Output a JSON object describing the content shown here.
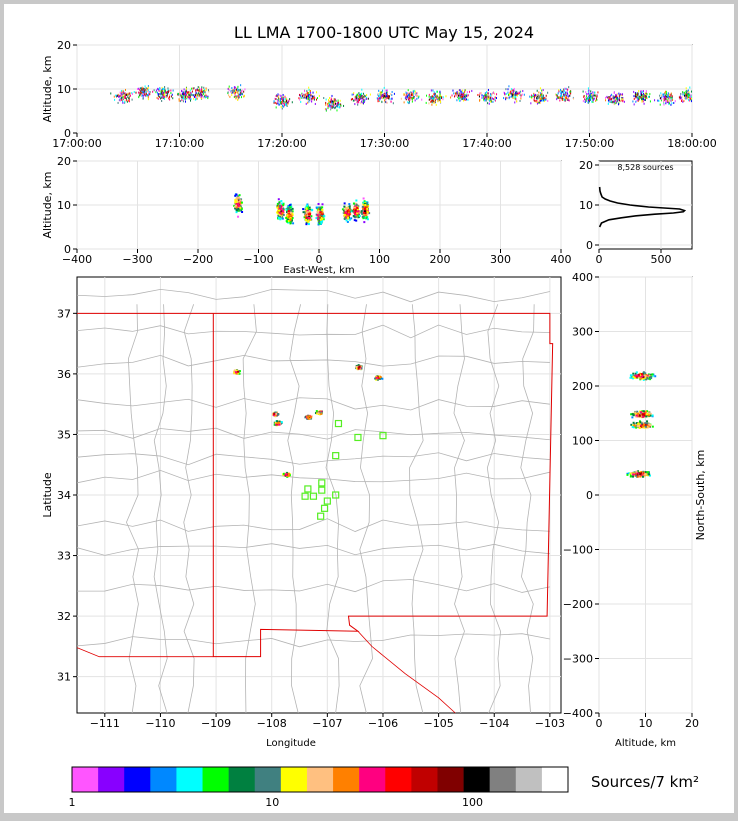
{
  "title": "LL LMA 1700-1800 UTC May 15, 2024",
  "chart_data": [
    {
      "id": "time-height",
      "type": "scatter",
      "ylabel": "Altitude, km",
      "xlim": [
        "17:00:00",
        "18:00:00"
      ],
      "ylim": [
        0,
        20
      ],
      "x_ticks": [
        "17:00:00",
        "17:10:00",
        "17:20:00",
        "17:30:00",
        "17:40:00",
        "17:50:00",
        "18:00:00"
      ],
      "y_ticks": [
        0,
        10,
        20
      ],
      "points": [
        {
          "t": "17:04:30",
          "alt": 8.5
        },
        {
          "t": "17:06:30",
          "alt": 9.5
        },
        {
          "t": "17:08:30",
          "alt": 9.0
        },
        {
          "t": "17:10:30",
          "alt": 8.8
        },
        {
          "t": "17:12:00",
          "alt": 9.2
        },
        {
          "t": "17:15:30",
          "alt": 9.5
        },
        {
          "t": "17:20:00",
          "alt": 7.5
        },
        {
          "t": "17:22:30",
          "alt": 8.5
        },
        {
          "t": "17:25:00",
          "alt": 7.0
        },
        {
          "t": "17:27:30",
          "alt": 8.0
        },
        {
          "t": "17:30:00",
          "alt": 8.5
        },
        {
          "t": "17:32:30",
          "alt": 8.5
        },
        {
          "t": "17:35:00",
          "alt": 8.2
        },
        {
          "t": "17:37:30",
          "alt": 8.8
        },
        {
          "t": "17:40:00",
          "alt": 8.5
        },
        {
          "t": "17:42:30",
          "alt": 9.0
        },
        {
          "t": "17:45:00",
          "alt": 8.5
        },
        {
          "t": "17:47:30",
          "alt": 8.8
        },
        {
          "t": "17:50:00",
          "alt": 8.5
        },
        {
          "t": "17:52:30",
          "alt": 8.0
        },
        {
          "t": "17:55:00",
          "alt": 8.5
        },
        {
          "t": "17:57:30",
          "alt": 8.2
        },
        {
          "t": "17:59:30",
          "alt": 8.5
        }
      ]
    },
    {
      "id": "ew-height",
      "type": "scatter",
      "xlabel": "East-West, km",
      "ylabel": "Altitude, km",
      "xlim": [
        -400,
        400
      ],
      "ylim": [
        0,
        20
      ],
      "x_ticks": [
        -400,
        -300,
        -200,
        -100,
        0,
        100,
        200,
        300,
        400
      ],
      "y_ticks": [
        0,
        10,
        20
      ],
      "points": [
        {
          "x": -135,
          "alt": 10.5
        },
        {
          "x": -65,
          "alt": 9.0
        },
        {
          "x": -50,
          "alt": 8.0
        },
        {
          "x": -20,
          "alt": 8.0
        },
        {
          "x": 0,
          "alt": 8.0
        },
        {
          "x": 45,
          "alt": 8.5
        },
        {
          "x": 60,
          "alt": 9.0
        },
        {
          "x": 75,
          "alt": 9.0
        }
      ]
    },
    {
      "id": "height-histogram",
      "type": "line",
      "annotation": "8,528 sources",
      "xlim": [
        0,
        750
      ],
      "ylim": [
        -1,
        21
      ],
      "x_ticks": [
        0,
        500
      ],
      "y_ticks": [
        0,
        10,
        20
      ],
      "x": [
        5,
        20,
        80,
        180,
        300,
        450,
        600,
        680,
        690,
        650,
        400,
        250,
        150,
        90,
        50,
        25,
        15,
        8,
        5
      ],
      "y": [
        4.5,
        5.5,
        6.3,
        6.8,
        7.3,
        7.7,
        8.0,
        8.3,
        8.6,
        9.0,
        9.5,
        10.0,
        10.5,
        11.0,
        11.5,
        12.0,
        12.8,
        13.5,
        14.5
      ]
    },
    {
      "id": "plan-view",
      "type": "scatter",
      "xlabel": "Longitude",
      "ylabel": "Latitude",
      "xlim": [
        -111.5,
        -102.8
      ],
      "ylim": [
        30.4,
        37.6
      ],
      "x_ticks": [
        -111,
        -110,
        -109,
        -108,
        -107,
        -106,
        -105,
        -104,
        -103
      ],
      "y_ticks": [
        31,
        32,
        33,
        34,
        35,
        36,
        37
      ],
      "clusters": [
        {
          "lon": -108.65,
          "lat": 36.05
        },
        {
          "lon": -106.45,
          "lat": 36.12
        },
        {
          "lon": -106.1,
          "lat": 35.95
        },
        {
          "lon": -107.95,
          "lat": 35.35
        },
        {
          "lon": -107.9,
          "lat": 35.2
        },
        {
          "lon": -107.35,
          "lat": 35.3
        },
        {
          "lon": -107.15,
          "lat": 35.38
        },
        {
          "lon": -107.75,
          "lat": 34.35
        }
      ],
      "stations": [
        {
          "lon": -106.8,
          "lat": 35.18
        },
        {
          "lon": -106.45,
          "lat": 34.95
        },
        {
          "lon": -106.0,
          "lat": 34.98
        },
        {
          "lon": -106.85,
          "lat": 34.65
        },
        {
          "lon": -107.1,
          "lat": 34.2
        },
        {
          "lon": -107.35,
          "lat": 34.1
        },
        {
          "lon": -107.1,
          "lat": 34.08
        },
        {
          "lon": -107.4,
          "lat": 33.98
        },
        {
          "lon": -107.25,
          "lat": 33.98
        },
        {
          "lon": -107.0,
          "lat": 33.9
        },
        {
          "lon": -106.85,
          "lat": 34.0
        },
        {
          "lon": -107.05,
          "lat": 33.78
        },
        {
          "lon": -107.12,
          "lat": 33.65
        }
      ]
    },
    {
      "id": "ns-height",
      "type": "scatter",
      "xlabel": "Altitude, km",
      "ylabel": "North-South, km",
      "xlim": [
        0,
        20
      ],
      "ylim": [
        -400,
        400
      ],
      "x_ticks": [
        0,
        10,
        20
      ],
      "y_ticks": [
        -400,
        -300,
        -200,
        -100,
        0,
        100,
        200,
        300,
        400
      ],
      "points": [
        {
          "alt": 9.0,
          "y": 220
        },
        {
          "alt": 9.0,
          "y": 150
        },
        {
          "alt": 9.0,
          "y": 130
        },
        {
          "alt": 8.5,
          "y": 40
        }
      ]
    }
  ],
  "colorbar": {
    "label": "Sources/7 km²",
    "tick_labels": [
      "1",
      "10",
      "100"
    ],
    "colors": [
      "#ff55ff",
      "#8800ff",
      "#0000ff",
      "#0088ff",
      "#00ffff",
      "#00ff00",
      "#008040",
      "#408080",
      "#ffff00",
      "#ffc080",
      "#ff8000",
      "#ff0080",
      "#ff0000",
      "#c00000",
      "#800000",
      "#000000",
      "#808080",
      "#c0c0c0",
      "#ffffff"
    ]
  }
}
